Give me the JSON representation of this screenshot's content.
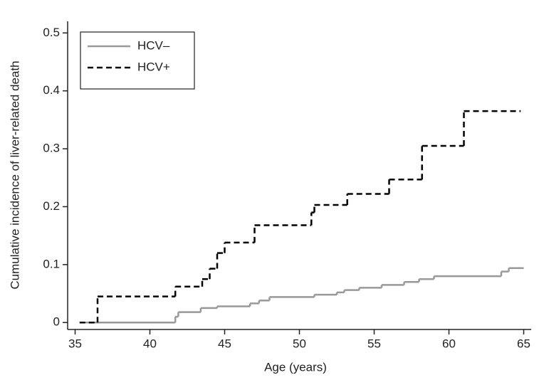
{
  "chart_data": {
    "type": "step",
    "x_label": "Age (years)",
    "y_label": "Cumulative incidence of liver-related death",
    "xlim": [
      34.5,
      65.5
    ],
    "xticks": [
      35,
      40,
      45,
      50,
      55,
      60,
      65
    ],
    "ylim": [
      -0.012,
      0.52
    ],
    "yticks": [
      0,
      0.1,
      0.2,
      0.3,
      0.4,
      0.5
    ],
    "grid": false,
    "legend": "upper-left",
    "series": [
      {
        "name": "HCV–",
        "color": "#999999",
        "dash": false,
        "x": [
          35.3,
          41.7,
          41.9,
          43.4,
          44.5,
          46.7,
          47.3,
          48,
          51,
          52.5,
          53,
          54,
          55.5,
          57,
          58,
          59,
          63.5,
          64,
          65
        ],
        "values": [
          0,
          0.01,
          0.018,
          0.025,
          0.028,
          0.033,
          0.038,
          0.044,
          0.048,
          0.052,
          0.056,
          0.06,
          0.065,
          0.07,
          0.075,
          0.08,
          0.088,
          0.094,
          0.094
        ]
      },
      {
        "name": "HCV+",
        "color": "#000000",
        "dash": true,
        "x": [
          35.3,
          36.5,
          41.7,
          43.5,
          44,
          44.5,
          45,
          47,
          50.8,
          51,
          53.2,
          56,
          58.2,
          61,
          64.8
        ],
        "values": [
          0,
          0.045,
          0.062,
          0.075,
          0.093,
          0.12,
          0.138,
          0.168,
          0.19,
          0.203,
          0.222,
          0.247,
          0.305,
          0.365,
          0.365
        ]
      }
    ]
  }
}
